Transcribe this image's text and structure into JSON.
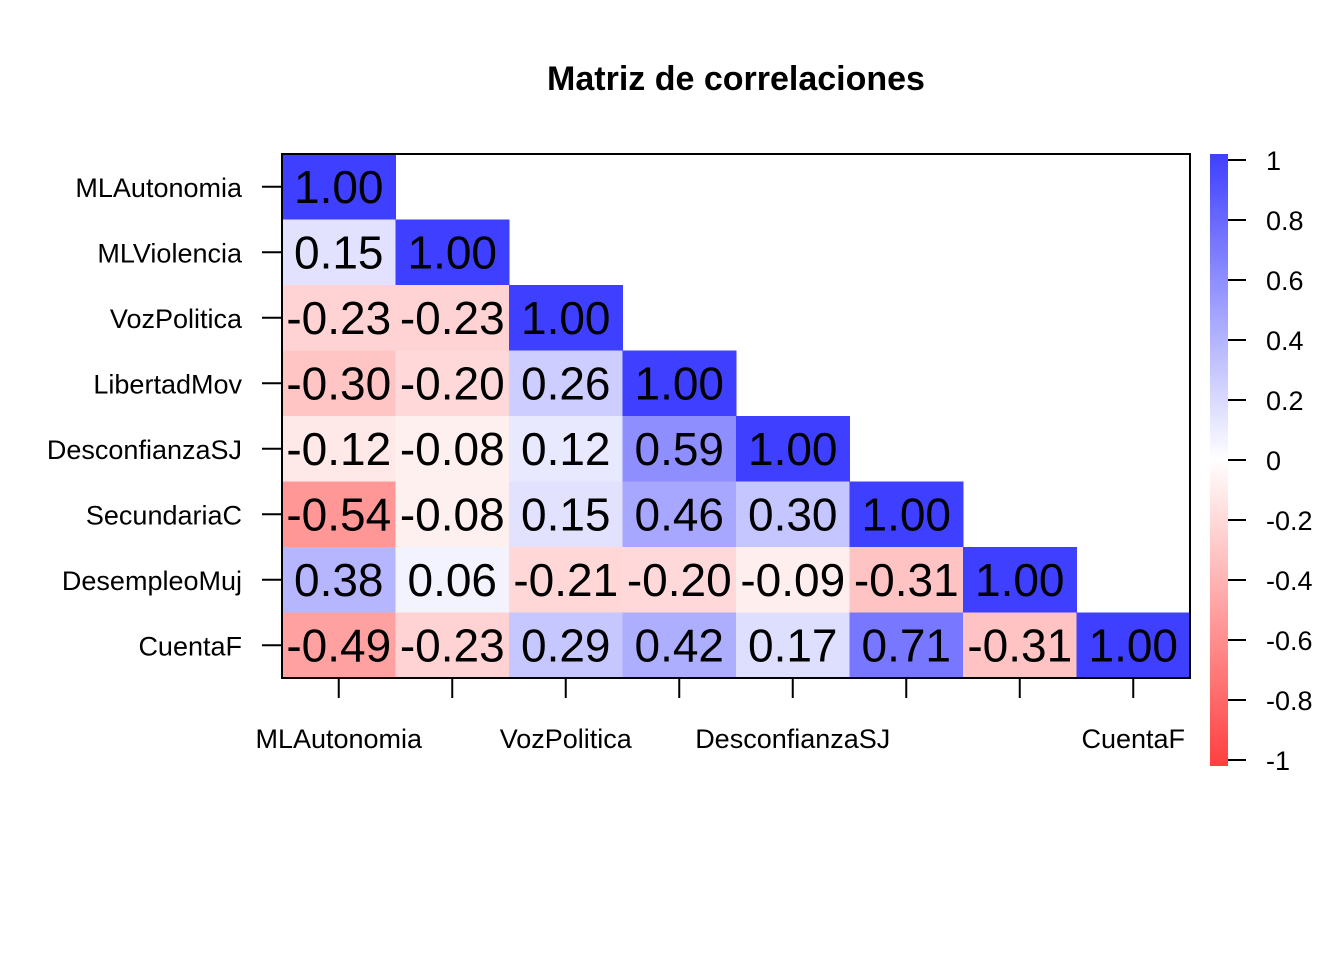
{
  "chart_data": {
    "type": "heatmap",
    "title": "Matriz de correlaciones",
    "variables": [
      "MLAutonomia",
      "MLViolencia",
      "VozPolitica",
      "LibertadMov",
      "DesconfianzaSJ",
      "SecundariaC",
      "DesempleoMuj",
      "CuentaF"
    ],
    "x_tick_labels": [
      "MLAutonomia",
      "",
      "VozPolitica",
      "",
      "DesconfianzaSJ",
      "",
      "",
      "CuentaF"
    ],
    "matrix": [
      [
        1.0,
        null,
        null,
        null,
        null,
        null,
        null,
        null
      ],
      [
        0.15,
        1.0,
        null,
        null,
        null,
        null,
        null,
        null
      ],
      [
        -0.23,
        -0.23,
        1.0,
        null,
        null,
        null,
        null,
        null
      ],
      [
        -0.3,
        -0.2,
        0.26,
        1.0,
        null,
        null,
        null,
        null
      ],
      [
        -0.12,
        -0.08,
        0.12,
        0.59,
        1.0,
        null,
        null,
        null
      ],
      [
        -0.54,
        -0.08,
        0.15,
        0.46,
        0.3,
        1.0,
        null,
        null
      ],
      [
        0.38,
        0.06,
        -0.21,
        -0.2,
        -0.09,
        -0.31,
        1.0,
        null
      ],
      [
        -0.49,
        -0.23,
        0.29,
        0.42,
        0.17,
        0.71,
        -0.31,
        1.0
      ]
    ],
    "value_range": [
      -1,
      1
    ],
    "legend_ticks": [
      "1",
      "0.8",
      "0.6",
      "0.4",
      "0.2",
      "0",
      "-0.2",
      "-0.4",
      "-0.6",
      "-0.8",
      "-1"
    ],
    "colors": {
      "positive": "#3f3fff",
      "zero": "#ffffff",
      "negative": "#ff3f3f"
    },
    "legend_position": "right",
    "display": "lower-triangle"
  }
}
